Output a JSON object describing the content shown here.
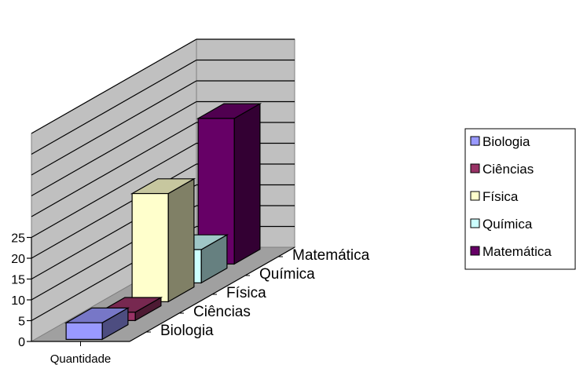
{
  "chart_data": {
    "type": "bar",
    "subtype": "3d-column",
    "title": "",
    "xlabel": "",
    "ylabel": "",
    "categories": [
      "Quantidade"
    ],
    "series": [
      {
        "name": "Biologia",
        "values": [
          4
        ],
        "color": "#9999ff"
      },
      {
        "name": "Ciências",
        "values": [
          2
        ],
        "color": "#993366"
      },
      {
        "name": "Física",
        "values": [
          26
        ],
        "color": "#ffffcc"
      },
      {
        "name": "Química",
        "values": [
          8
        ],
        "color": "#ccffff"
      },
      {
        "name": "Matemática",
        "values": [
          35
        ],
        "color": "#660066"
      }
    ],
    "ylim": [
      0,
      50
    ],
    "yticks": [
      0,
      5,
      10,
      15,
      20,
      25
    ],
    "grid": true,
    "legend_position": "right"
  }
}
